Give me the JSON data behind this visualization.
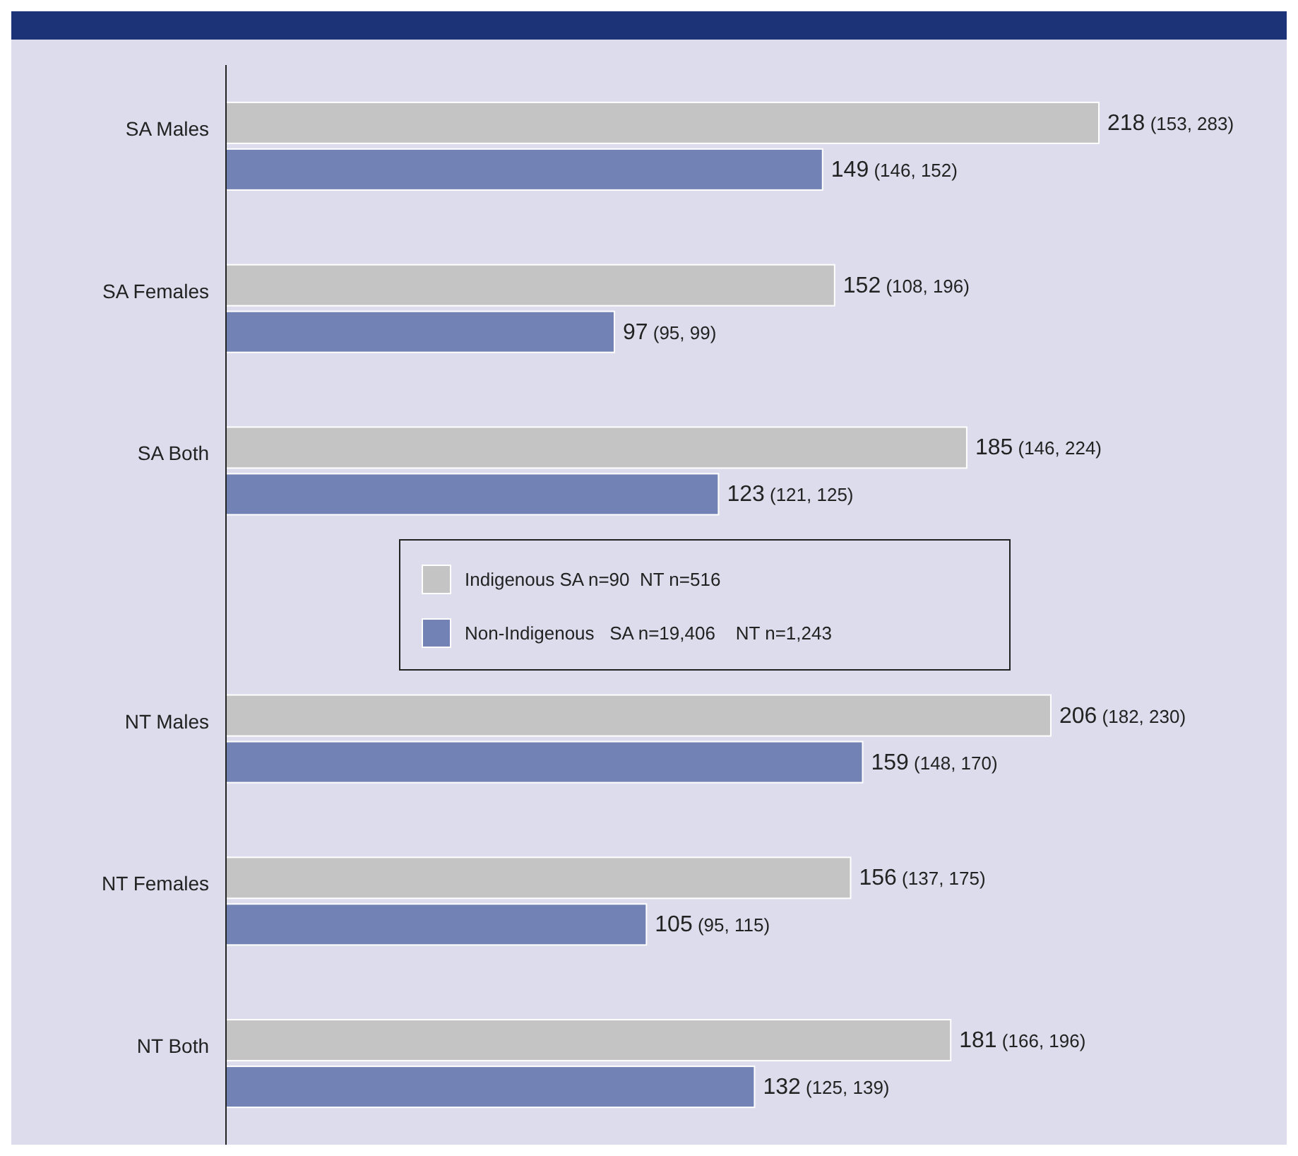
{
  "chart_data": {
    "type": "bar",
    "orientation": "horizontal",
    "legend": "center",
    "categories": [
      "SA Males",
      "SA Females",
      "SA Both",
      null,
      "NT Males",
      "NT Females",
      "NT Both"
    ],
    "series": [
      {
        "name": "Indigenous SA n=90  NT n=516",
        "color": "#c4c4c4",
        "values": [
          218,
          152,
          185,
          null,
          206,
          156,
          181
        ],
        "value_labels": [
          "218 (153, 283)",
          "152 (108, 196)",
          "185 (146, 224)",
          null,
          "206 (182, 230)",
          "156 (137, 175)",
          "181 (166, 196)"
        ]
      },
      {
        "name": "Non-Indigenous   SA n=19,406    NT n=1,243",
        "color": "#7382b4",
        "values": [
          149,
          97,
          123,
          null,
          159,
          105,
          132
        ],
        "value_labels": [
          "149 (146, 152)",
          "97 (95, 99)",
          "123 (121, 125)",
          null,
          "159 (148, 170)",
          "105 (95, 115)",
          "132 (125, 139)"
        ]
      }
    ]
  }
}
